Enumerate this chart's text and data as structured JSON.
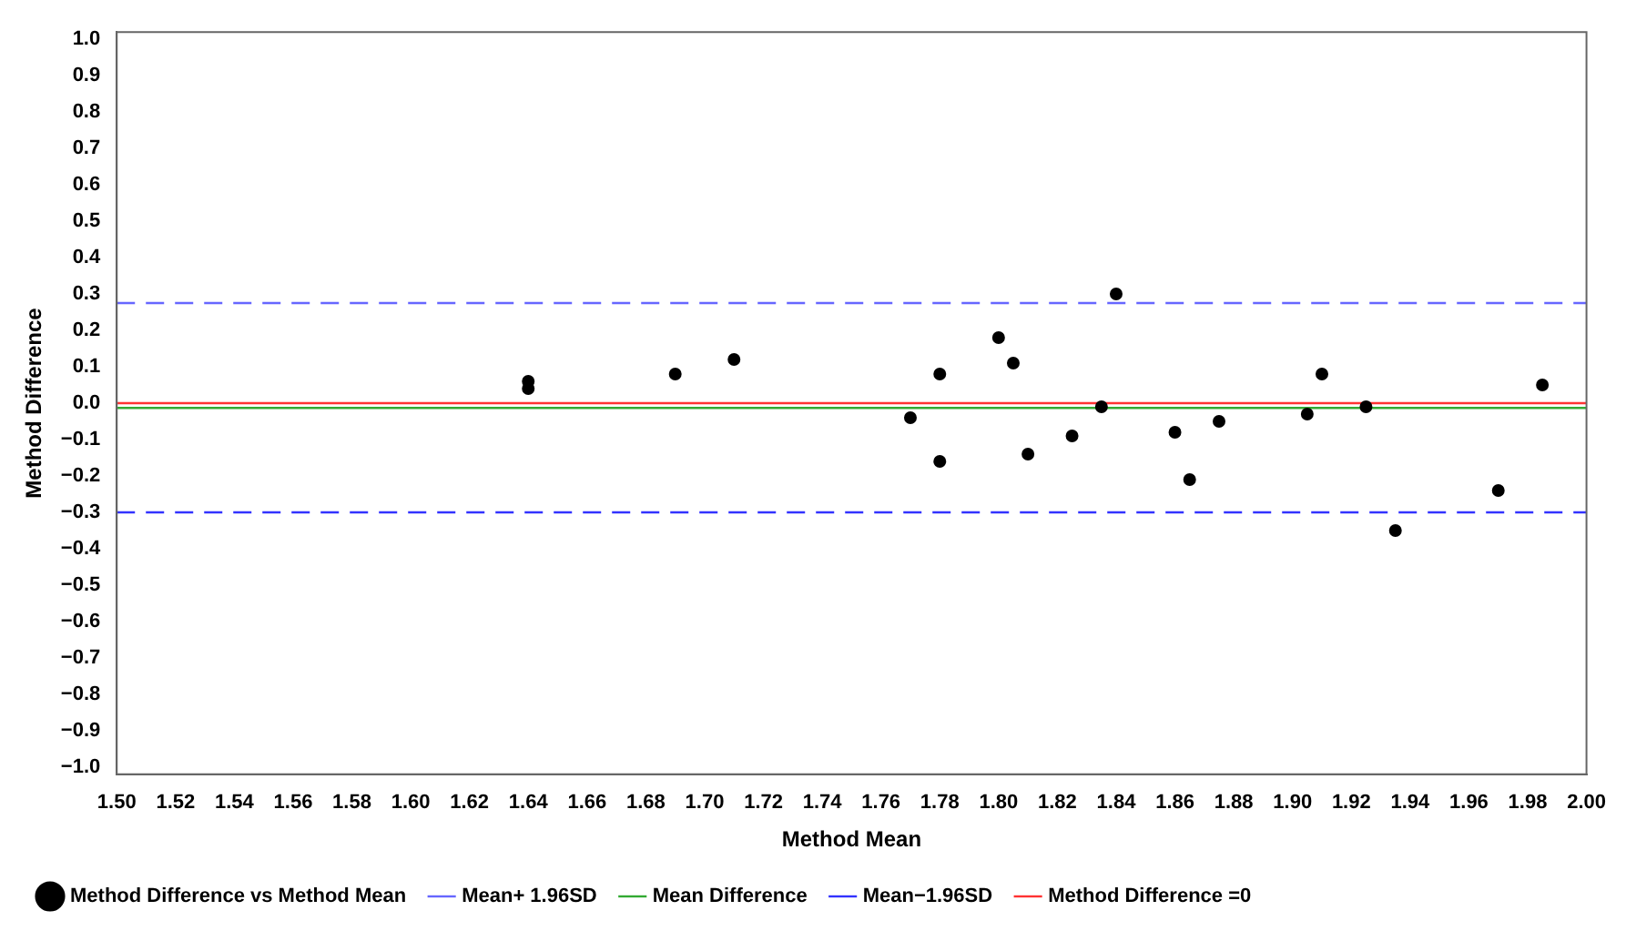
{
  "chart_data": {
    "type": "scatter",
    "xlabel": "Method Mean",
    "ylabel": "Method Difference",
    "series": [
      {
        "name": "Method Difference vs Method Mean",
        "color": "#000000",
        "x": [
          1.64,
          1.64,
          1.69,
          1.71,
          1.77,
          1.78,
          1.78,
          1.8,
          1.805,
          1.81,
          1.825,
          1.835,
          1.84,
          1.86,
          1.865,
          1.875,
          1.905,
          1.91,
          1.925,
          1.935,
          1.97,
          1.985
        ],
        "values": [
          0.06,
          0.04,
          0.08,
          0.12,
          -0.04,
          0.08,
          -0.16,
          0.18,
          0.11,
          -0.14,
          -0.09,
          -0.01,
          0.3,
          -0.08,
          -0.21,
          -0.05,
          -0.03,
          0.08,
          -0.01,
          -0.35,
          -0.24,
          0.05
        ]
      }
    ],
    "ref_lines": [
      {
        "axis": "y",
        "value": 0.275,
        "label": "Mean+ 1.96SD",
        "color": "#6666ff",
        "line_style": "dashed"
      },
      {
        "axis": "y",
        "value": -0.013,
        "label": "Mean Difference",
        "color": "#33aa33",
        "line_style": "solid"
      },
      {
        "axis": "y",
        "value": -0.3,
        "label": "Mean−1.96SD",
        "color": "#3333ff",
        "line_style": "dashed"
      },
      {
        "axis": "y",
        "value": 0,
        "label": "Method Difference =0",
        "color": "#ff3333",
        "line_style": "solid"
      }
    ],
    "marker": "circle",
    "legend": "bottom",
    "grid": false,
    "xlim": [
      1.5,
      2.0
    ],
    "xticks": [
      {
        "value": 1.5,
        "label": "1.50"
      },
      {
        "value": 1.52,
        "label": "1.52"
      },
      {
        "value": 1.54,
        "label": "1.54"
      },
      {
        "value": 1.56,
        "label": "1.56"
      },
      {
        "value": 1.58,
        "label": "1.58"
      },
      {
        "value": 1.6,
        "label": "1.60"
      },
      {
        "value": 1.62,
        "label": "1.62"
      },
      {
        "value": 1.64,
        "label": "1.64"
      },
      {
        "value": 1.66,
        "label": "1.66"
      },
      {
        "value": 1.68,
        "label": "1.68"
      },
      {
        "value": 1.7,
        "label": "1.70"
      },
      {
        "value": 1.72,
        "label": "1.72"
      },
      {
        "value": 1.74,
        "label": "1.74"
      },
      {
        "value": 1.76,
        "label": "1.76"
      },
      {
        "value": 1.78,
        "label": "1.78"
      },
      {
        "value": 1.8,
        "label": "1.80"
      },
      {
        "value": 1.82,
        "label": "1.82"
      },
      {
        "value": 1.84,
        "label": "1.84"
      },
      {
        "value": 1.86,
        "label": "1.86"
      },
      {
        "value": 1.88,
        "label": "1.88"
      },
      {
        "value": 1.9,
        "label": "1.90"
      },
      {
        "value": 1.92,
        "label": "1.92"
      },
      {
        "value": 1.94,
        "label": "1.94"
      },
      {
        "value": 1.96,
        "label": "1.96"
      },
      {
        "value": 1.98,
        "label": "1.98"
      },
      {
        "value": 2.0,
        "label": "2.00"
      }
    ],
    "ylim": [
      -1.02,
      1.02
    ],
    "yticks": [
      {
        "value": -1,
        "label": "−1.0"
      },
      {
        "value": -0.9,
        "label": "−0.9"
      },
      {
        "value": -0.8,
        "label": "−0.8"
      },
      {
        "value": -0.7,
        "label": "−0.7"
      },
      {
        "value": -0.6,
        "label": "−0.6"
      },
      {
        "value": -0.5,
        "label": "−0.5"
      },
      {
        "value": -0.4,
        "label": "−0.4"
      },
      {
        "value": -0.3,
        "label": "−0.3"
      },
      {
        "value": -0.2,
        "label": "−0.2"
      },
      {
        "value": -0.1,
        "label": "−0.1"
      },
      {
        "value": 0,
        "label": "0.0"
      },
      {
        "value": 0.1,
        "label": "0.1"
      },
      {
        "value": 0.2,
        "label": "0.2"
      },
      {
        "value": 0.3,
        "label": "0.3"
      },
      {
        "value": 0.4,
        "label": "0.4"
      },
      {
        "value": 0.5,
        "label": "0.5"
      },
      {
        "value": 0.6,
        "label": "0.6"
      },
      {
        "value": 0.7,
        "label": "0.7"
      },
      {
        "value": 0.8,
        "label": "0.8"
      },
      {
        "value": 0.9,
        "label": "0.9"
      },
      {
        "value": 1,
        "label": "1.0"
      }
    ]
  }
}
